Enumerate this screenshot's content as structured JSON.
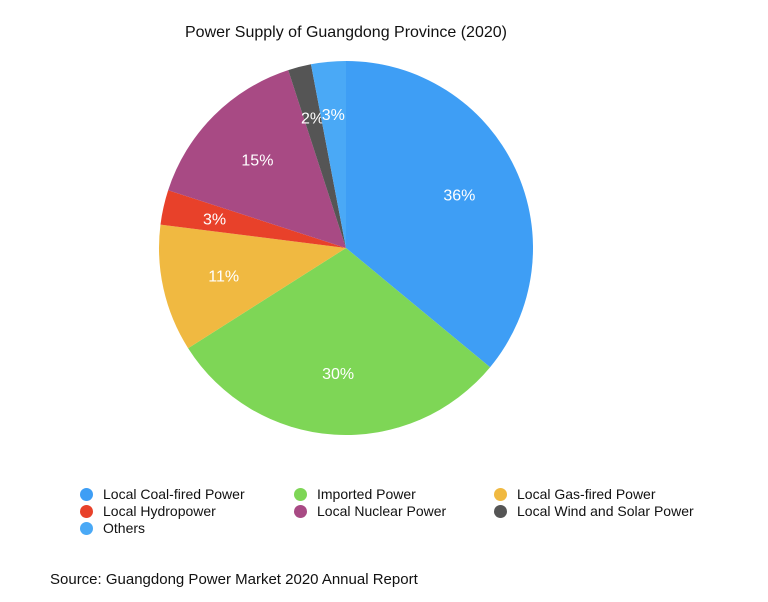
{
  "chart_data": {
    "type": "pie",
    "title": "Power Supply of Guangdong Province (2020)",
    "start": "top",
    "direction": "clockwise",
    "slices": [
      {
        "label": "Local Coal-fired Power",
        "value": 36,
        "text": "36%",
        "color": "#3e9ef5"
      },
      {
        "label": "Imported Power",
        "value": 30,
        "text": "30%",
        "color": "#7ed656"
      },
      {
        "label": "Local Gas-fired Power",
        "value": 11,
        "text": "11%",
        "color": "#f0b941"
      },
      {
        "label": "Local Hydropower",
        "value": 3,
        "text": "3%",
        "color": "#e8412a"
      },
      {
        "label": "Local Nuclear Power",
        "value": 15,
        "text": "15%",
        "color": "#a84a84"
      },
      {
        "label": "Local Wind and Solar Power",
        "value": 2,
        "text": "2%",
        "color": "#555555"
      },
      {
        "label": "Others",
        "value": 3,
        "text": "3%",
        "color": "#4aa9f6"
      }
    ],
    "legend_position": "bottom"
  },
  "source": "Source: Guangdong Power Market 2020 Annual Report"
}
